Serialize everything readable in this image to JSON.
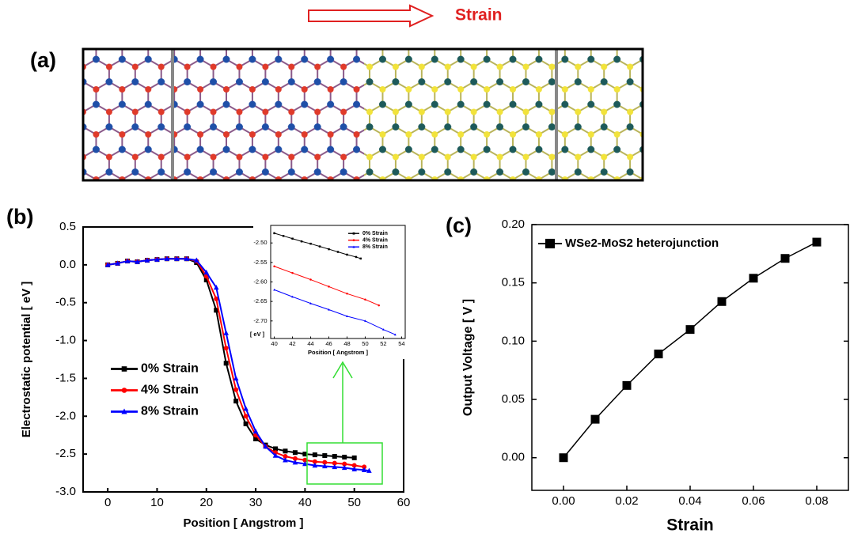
{
  "figure": {
    "arrow_label": "Strain",
    "panel_labels": [
      "(a)",
      "(b)",
      "(c)"
    ]
  },
  "chart_data": [
    {
      "type": "line",
      "xlabel": "Position [ Angstrom ]",
      "ylabel": "Electrostatic potential [ eV ]",
      "xlim": [
        -5,
        60
      ],
      "xticks": [
        0,
        10,
        20,
        30,
        40,
        50,
        60
      ],
      "ylim": [
        -3,
        0.5
      ],
      "yticks": [
        0.5,
        {
          "value": 0,
          "label": "0.0"
        },
        -0.5,
        {
          "value": -1,
          "label": "-1.0"
        },
        -1.5,
        {
          "value": -2,
          "label": "-2.0"
        },
        -2.5,
        {
          "value": -3,
          "label": "-3.0"
        }
      ],
      "legend": "center left",
      "series": [
        {
          "name": "0% Strain",
          "color": "#000000",
          "marker": "square",
          "x": [
            0,
            2,
            4,
            6,
            8,
            10,
            12,
            14,
            16,
            18,
            20,
            22,
            24,
            26,
            28,
            30,
            32,
            34,
            36,
            38,
            40,
            42,
            44,
            46,
            48,
            50
          ],
          "values": [
            0,
            0.02,
            0.05,
            0.04,
            0.06,
            0.07,
            0.08,
            0.08,
            0.08,
            0.03,
            -0.2,
            -0.6,
            -1.3,
            -1.8,
            -2.1,
            -2.3,
            -2.38,
            -2.43,
            -2.46,
            -2.48,
            -2.5,
            -2.51,
            -2.52,
            -2.53,
            -2.54,
            -2.55
          ]
        },
        {
          "name": "4% Strain",
          "color": "#ff0000",
          "marker": "circle",
          "x": [
            0,
            2,
            4,
            6,
            8,
            10,
            12,
            14,
            16,
            18,
            20,
            22,
            24,
            26,
            28,
            30,
            32,
            34,
            36,
            38,
            40,
            42,
            44,
            46,
            48,
            50,
            52
          ],
          "values": [
            0,
            0.02,
            0.05,
            0.04,
            0.06,
            0.07,
            0.08,
            0.08,
            0.08,
            0.05,
            -0.15,
            -0.45,
            -1.1,
            -1.65,
            -2.0,
            -2.25,
            -2.4,
            -2.48,
            -2.53,
            -2.56,
            -2.58,
            -2.6,
            -2.61,
            -2.62,
            -2.63,
            -2.65,
            -2.67
          ]
        },
        {
          "name": "8% Strain",
          "color": "#0000ff",
          "marker": "triangle",
          "x": [
            0,
            2,
            4,
            6,
            8,
            10,
            12,
            14,
            16,
            18,
            20,
            22,
            24,
            26,
            28,
            30,
            32,
            34,
            36,
            38,
            40,
            42,
            44,
            46,
            48,
            50,
            52,
            53
          ],
          "values": [
            0,
            0.02,
            0.05,
            0.04,
            0.06,
            0.07,
            0.08,
            0.08,
            0.08,
            0.06,
            -0.1,
            -0.3,
            -0.9,
            -1.5,
            -1.9,
            -2.2,
            -2.4,
            -2.52,
            -2.58,
            -2.61,
            -2.63,
            -2.65,
            -2.66,
            -2.67,
            -2.68,
            -2.7,
            -2.71,
            -2.72
          ]
        }
      ]
    },
    {
      "type": "line",
      "xlabel": "Position [ Angstrom ]",
      "ylabel": "[ eV ]",
      "xlim": [
        39.6,
        54.4
      ],
      "xticks": [
        40,
        42,
        44,
        46,
        48,
        50,
        52,
        54
      ],
      "ylim": [
        -2.745,
        -2.455
      ],
      "yticks": [
        {
          "value": -2.5,
          "label": "-2.50"
        },
        -2.55,
        {
          "value": -2.6,
          "label": "-2.60"
        },
        -2.65,
        {
          "value": -2.7,
          "label": "-2.70"
        }
      ],
      "legend": "upper right",
      "series": [
        {
          "name": "0% Strain",
          "color": "#000000",
          "marker": "square",
          "x": [
            40,
            41,
            42,
            43,
            44,
            45,
            46,
            47,
            48,
            49,
            49.5
          ],
          "values": [
            -2.475,
            -2.482,
            -2.489,
            -2.496,
            -2.502,
            -2.509,
            -2.516,
            -2.523,
            -2.53,
            -2.536,
            -2.54
          ]
        },
        {
          "name": "4% Strain",
          "color": "#ff0000",
          "marker": "circle",
          "x": [
            40,
            42,
            44,
            46,
            48,
            50,
            51.5
          ],
          "values": [
            -2.56,
            -2.577,
            -2.594,
            -2.612,
            -2.63,
            -2.645,
            -2.66
          ]
        },
        {
          "name": "8% Strain",
          "color": "#0000ff",
          "marker": "triangle",
          "x": [
            40,
            42,
            44,
            46,
            48,
            50,
            52,
            53.3
          ],
          "values": [
            -2.62,
            -2.638,
            -2.655,
            -2.671,
            -2.688,
            -2.7,
            -2.722,
            -2.735
          ]
        }
      ]
    },
    {
      "type": "line",
      "xlabel": "Strain",
      "ylabel": "Output Voltage [ V ]",
      "xlim": [
        -0.01,
        0.09
      ],
      "xticks": [
        {
          "value": 0,
          "label": "0.00"
        },
        0.02,
        0.04,
        0.06,
        0.08
      ],
      "ylim": [
        -0.028,
        0.2
      ],
      "yticks": [
        {
          "value": 0,
          "label": "0.00"
        },
        0.05,
        {
          "value": 0.1,
          "label": "0.10"
        },
        0.15,
        {
          "value": 0.2,
          "label": "0.20"
        }
      ],
      "legend": "upper left",
      "x": [
        0,
        0.01,
        0.02,
        0.03,
        0.04,
        0.05,
        0.06,
        0.07,
        0.08
      ],
      "series": [
        {
          "name": "WSe2-MoS2 heterojunction",
          "color": "#000000",
          "marker": "square",
          "values": [
            0,
            0.033,
            0.062,
            0.089,
            0.11,
            0.134,
            0.154,
            0.171,
            0.185
          ]
        }
      ]
    }
  ]
}
